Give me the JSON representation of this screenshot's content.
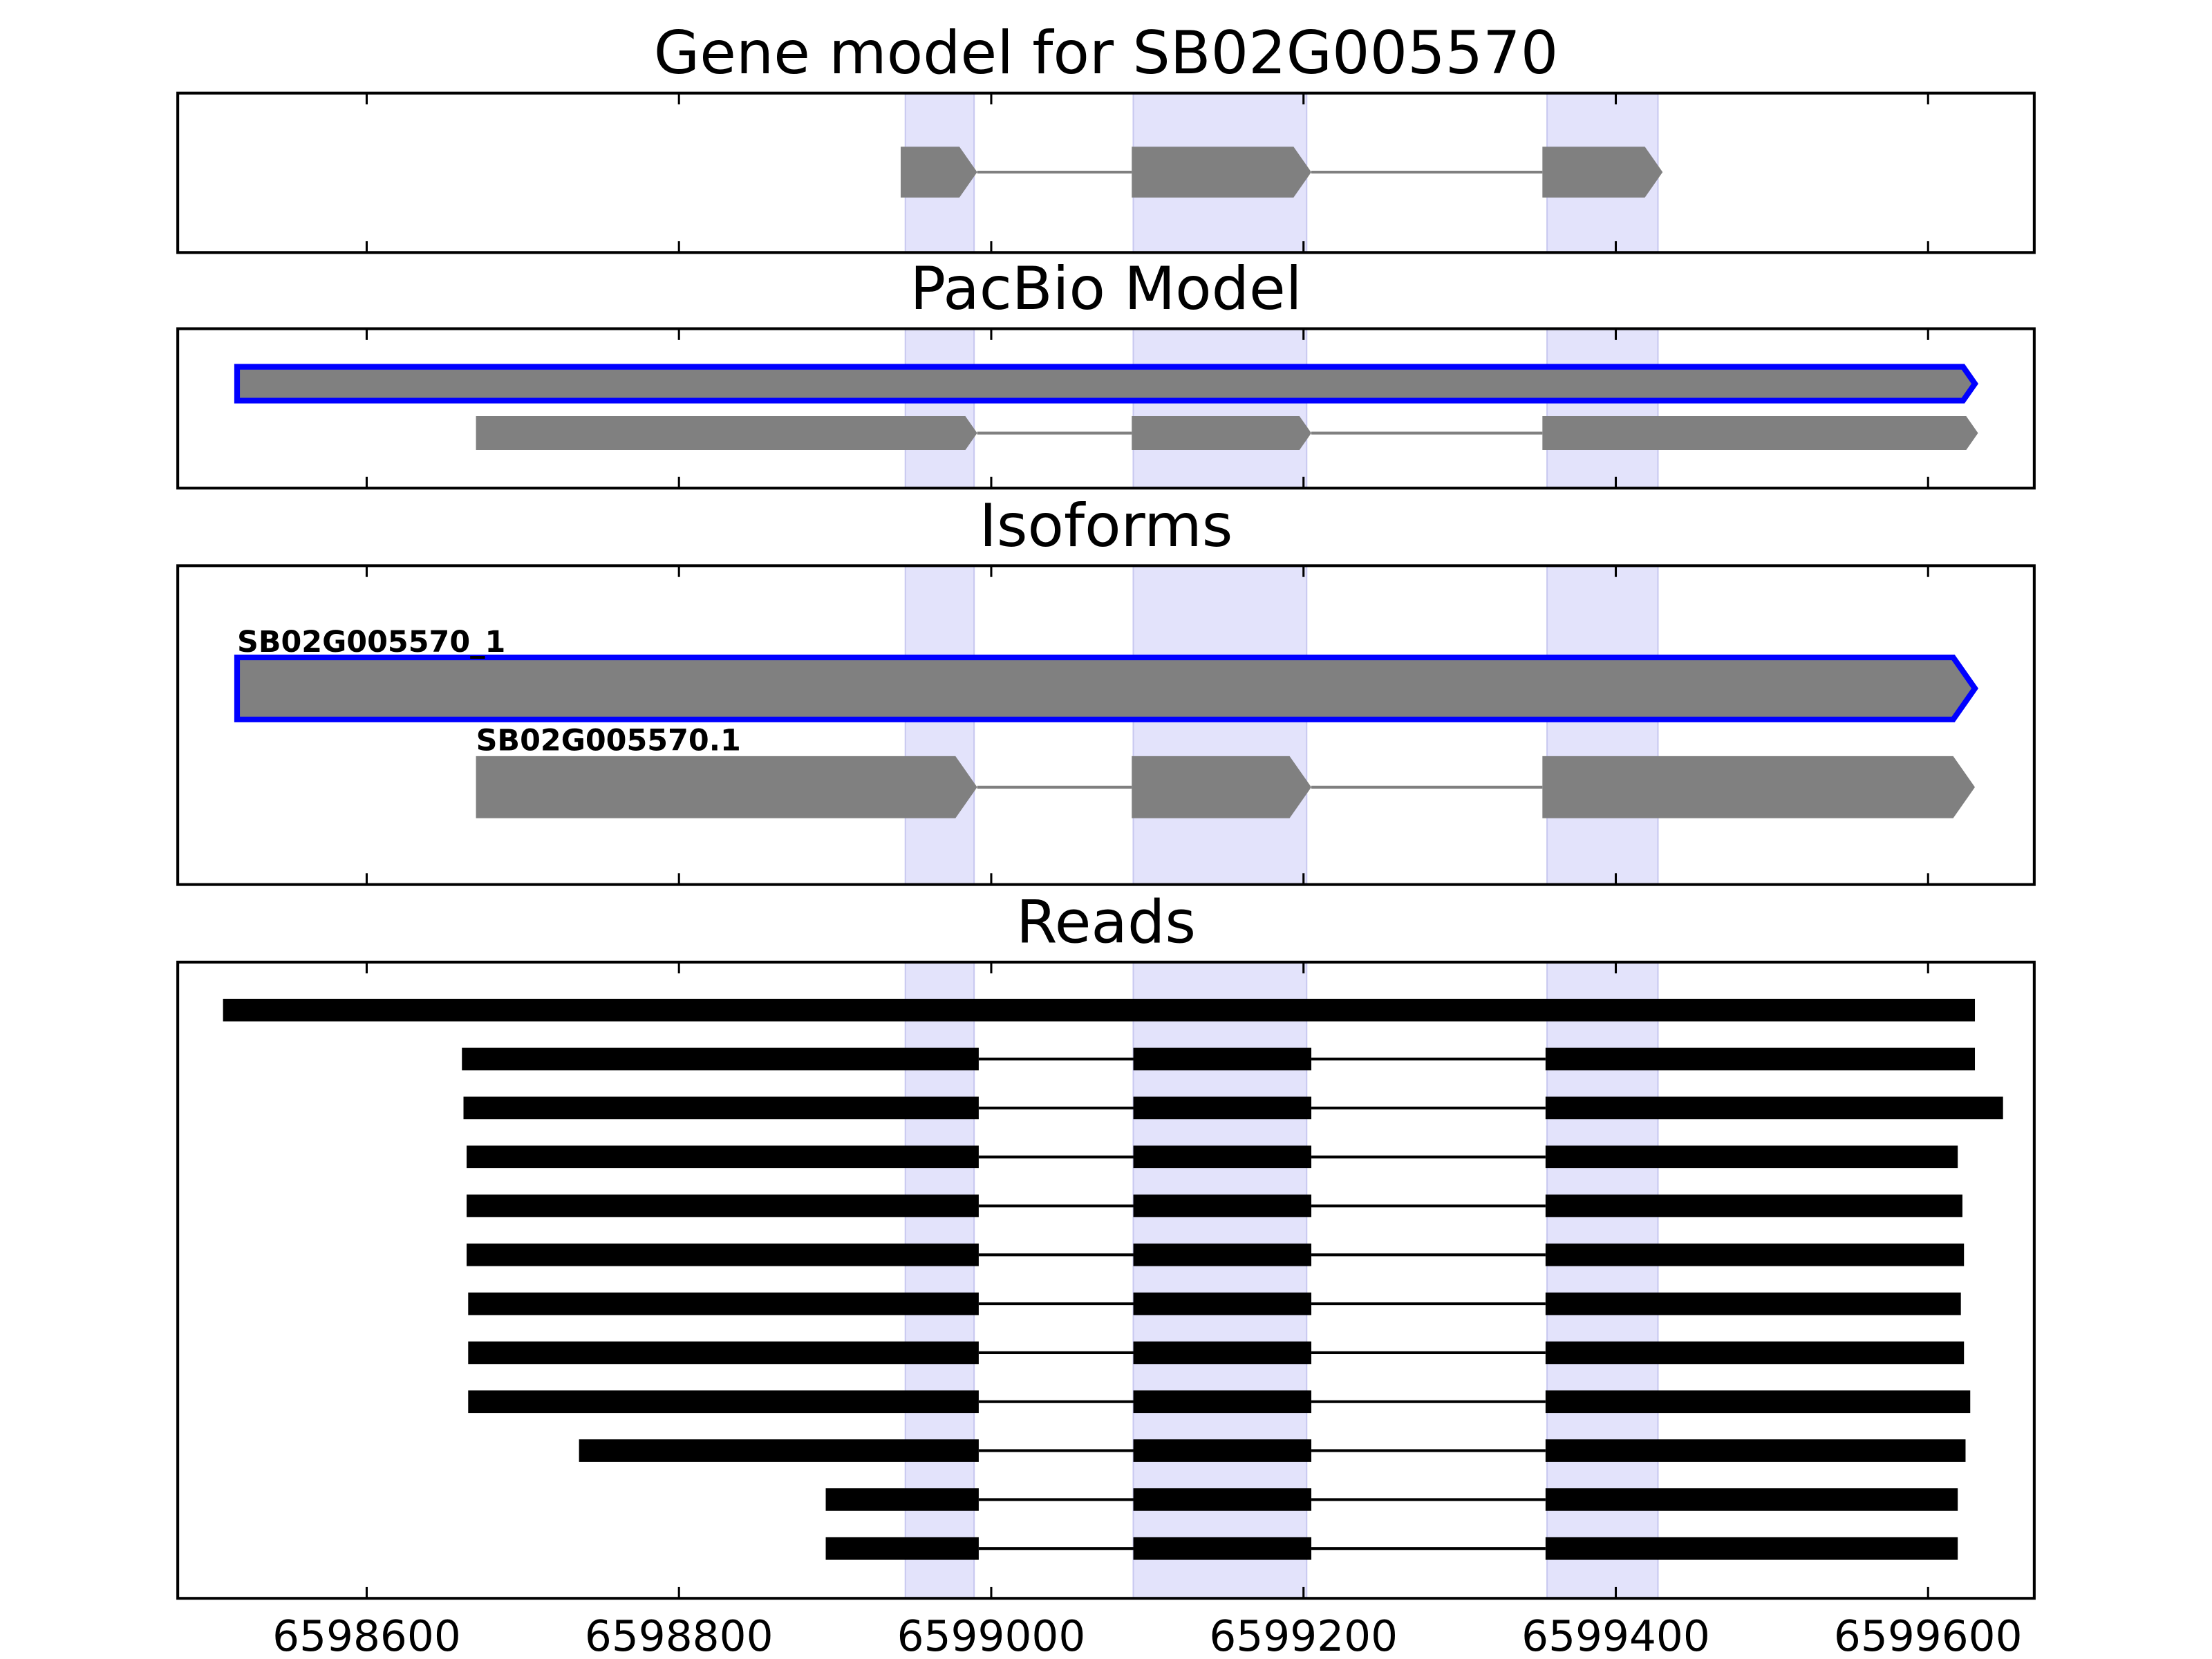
{
  "chart_data": [
    {
      "type": "gene_model",
      "title": "Gene model for SB02G005570",
      "xlim": [
        6598479,
        6599668
      ],
      "xticks": [
        6598600,
        6598800,
        6599000,
        6599200,
        6599400,
        6599600
      ],
      "tick_labels": false,
      "shade": [
        [
          6598945,
          6598989
        ],
        [
          6599091,
          6599202
        ],
        [
          6599356,
          6599427
        ]
      ],
      "shade_color": "#e3e3fb",
      "color": "#808080",
      "highlight_color": "#0000ff",
      "tracks": [
        {
          "exons": [
            [
              6598942,
              6598991
            ],
            [
              6599090,
              6599205
            ],
            [
              6599353,
              6599430
            ]
          ],
          "highlight": false
        }
      ]
    },
    {
      "type": "gene_model",
      "title": "PacBio Model",
      "xlim": [
        6598479,
        6599668
      ],
      "xticks": [
        6598600,
        6598800,
        6599000,
        6599200,
        6599400,
        6599600
      ],
      "tick_labels": false,
      "shade": [
        [
          6598945,
          6598989
        ],
        [
          6599091,
          6599202
        ],
        [
          6599356,
          6599427
        ]
      ],
      "shade_color": "#e3e3fb",
      "color": "#808080",
      "highlight_color": "#0000ff",
      "tracks": [
        {
          "exons": [
            [
              6598517,
              6599630
            ]
          ],
          "highlight": true
        },
        {
          "exons": [
            [
              6598670,
              6598991
            ],
            [
              6599090,
              6599205
            ],
            [
              6599353,
              6599632
            ]
          ],
          "highlight": false
        }
      ]
    },
    {
      "type": "gene_model",
      "title": "Isoforms",
      "xlim": [
        6598479,
        6599668
      ],
      "xticks": [
        6598600,
        6598800,
        6599000,
        6599200,
        6599400,
        6599600
      ],
      "tick_labels": false,
      "shade": [
        [
          6598945,
          6598989
        ],
        [
          6599091,
          6599202
        ],
        [
          6599356,
          6599427
        ]
      ],
      "shade_color": "#e3e3fb",
      "color": "#808080",
      "highlight_color": "#0000ff",
      "tracks": [
        {
          "label": "SB02G005570_1",
          "exons": [
            [
              6598517,
              6599630
            ]
          ],
          "highlight": true
        },
        {
          "label": "SB02G005570.1",
          "exons": [
            [
              6598670,
              6598991
            ],
            [
              6599090,
              6599205
            ],
            [
              6599353,
              6599630
            ]
          ],
          "highlight": false
        }
      ]
    },
    {
      "type": "reads",
      "title": "Reads",
      "xlim": [
        6598479,
        6599668
      ],
      "xticks": [
        6598600,
        6598800,
        6599000,
        6599200,
        6599400,
        6599600
      ],
      "tick_labels": true,
      "shade": [
        [
          6598945,
          6598989
        ],
        [
          6599091,
          6599202
        ],
        [
          6599356,
          6599427
        ]
      ],
      "shade_color": "#e3e3fb",
      "color": "#000000",
      "tracks": [
        {
          "exons": [
            [
              6598508,
              6599630
            ]
          ]
        },
        {
          "exons": [
            [
              6598661,
              6598992
            ],
            [
              6599091,
              6599205
            ],
            [
              6599355,
              6599630
            ]
          ]
        },
        {
          "exons": [
            [
              6598662,
              6598992
            ],
            [
              6599091,
              6599205
            ],
            [
              6599355,
              6599648
            ]
          ]
        },
        {
          "exons": [
            [
              6598664,
              6598992
            ],
            [
              6599091,
              6599205
            ],
            [
              6599355,
              6599619
            ]
          ]
        },
        {
          "exons": [
            [
              6598664,
              6598992
            ],
            [
              6599091,
              6599205
            ],
            [
              6599355,
              6599622
            ]
          ]
        },
        {
          "exons": [
            [
              6598664,
              6598992
            ],
            [
              6599091,
              6599205
            ],
            [
              6599355,
              6599623
            ]
          ]
        },
        {
          "exons": [
            [
              6598665,
              6598992
            ],
            [
              6599091,
              6599205
            ],
            [
              6599355,
              6599621
            ]
          ]
        },
        {
          "exons": [
            [
              6598665,
              6598992
            ],
            [
              6599091,
              6599205
            ],
            [
              6599355,
              6599623
            ]
          ]
        },
        {
          "exons": [
            [
              6598665,
              6598992
            ],
            [
              6599091,
              6599205
            ],
            [
              6599355,
              6599627
            ]
          ]
        },
        {
          "exons": [
            [
              6598736,
              6598992
            ],
            [
              6599091,
              6599205
            ],
            [
              6599355,
              6599624
            ]
          ]
        },
        {
          "exons": [
            [
              6598894,
              6598992
            ],
            [
              6599091,
              6599205
            ],
            [
              6599355,
              6599619
            ]
          ]
        },
        {
          "exons": [
            [
              6598894,
              6598992
            ],
            [
              6599091,
              6599205
            ],
            [
              6599355,
              6599619
            ]
          ]
        }
      ]
    }
  ]
}
